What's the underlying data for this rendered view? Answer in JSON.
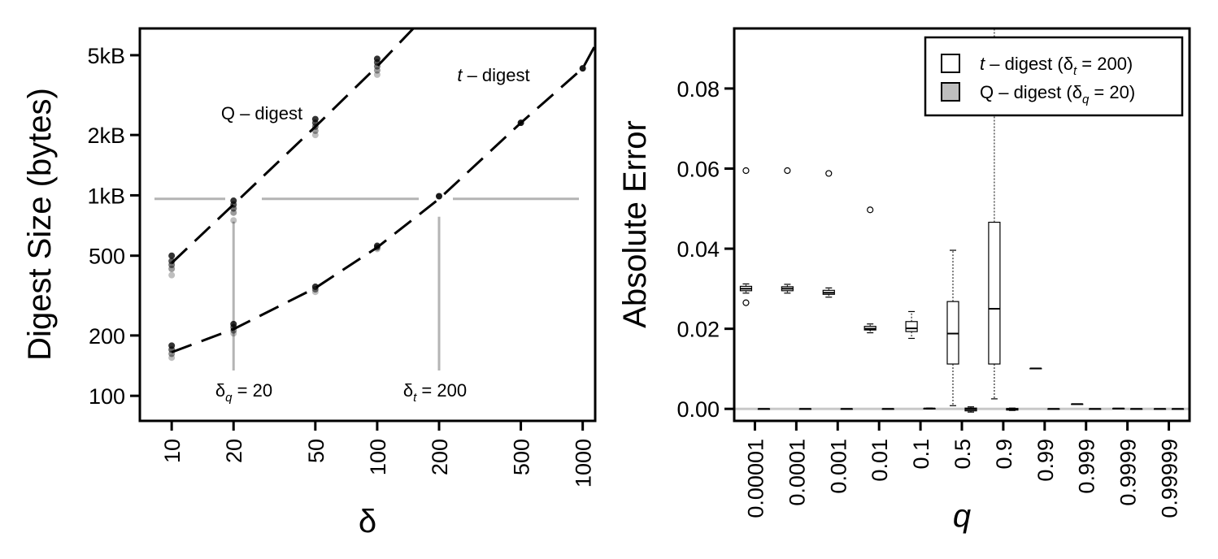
{
  "chart_data": [
    {
      "type": "scatter",
      "title": "",
      "xlabel": "δ",
      "ylabel": "Digest Size (bytes)",
      "x_scale": "log",
      "y_scale": "log",
      "xlim": [
        7,
        1150
      ],
      "ylim": [
        75,
        6800
      ],
      "x_ticks": [
        {
          "value": 10,
          "label": "10"
        },
        {
          "value": 20,
          "label": "20"
        },
        {
          "value": 50,
          "label": "50"
        },
        {
          "value": 100,
          "label": "100"
        },
        {
          "value": 200,
          "label": "200"
        },
        {
          "value": 500,
          "label": "500"
        },
        {
          "value": 1000,
          "label": "1000"
        }
      ],
      "y_ticks": [
        {
          "value": 100,
          "label": "100"
        },
        {
          "value": 200,
          "label": "200"
        },
        {
          "value": 500,
          "label": "500"
        },
        {
          "value": 1000,
          "label": "1kB"
        },
        {
          "value": 2000,
          "label": "2kB"
        },
        {
          "value": 5000,
          "label": "5kB"
        }
      ],
      "reference_lines": {
        "horizontal_y": 960,
        "vertical_x": [
          20,
          200
        ]
      },
      "annotations": {
        "qdigest_label": "Q – digest",
        "tdigest_prefix": "t",
        "tdigest_suffix": " – digest",
        "delta_q_base": "δ",
        "delta_q_sub": "q",
        "delta_q_value": " = 20",
        "delta_t_base": "δ",
        "delta_t_sub": "t",
        "delta_t_value": " = 200"
      },
      "series": [
        {
          "name": "Q – digest",
          "points": [
            {
              "x": 10,
              "y": [
                400,
                430,
                450,
                470,
                500
              ]
            },
            {
              "x": 20,
              "y": [
                750,
                820,
                860,
                900,
                940
              ]
            },
            {
              "x": 50,
              "y": [
                2000,
                2100,
                2200,
                2300,
                2400
              ]
            },
            {
              "x": 100,
              "y": [
                4000,
                4200,
                4400,
                4600,
                4800
              ]
            }
          ],
          "fit": [
            [
              10,
              460
            ],
            [
              20,
              900
            ],
            [
              50,
              2200
            ],
            [
              100,
              4400
            ],
            [
              150,
              6800
            ]
          ]
        },
        {
          "name": "t – digest",
          "points": [
            {
              "x": 10,
              "y": [
                155,
                162,
                170,
                178
              ]
            },
            {
              "x": 20,
              "y": [
                205,
                212,
                220,
                228
              ]
            },
            {
              "x": 50,
              "y": [
                330,
                340,
                350
              ]
            },
            {
              "x": 100,
              "y": [
                540,
                550,
                560
              ]
            },
            {
              "x": 200,
              "y": [
                990
              ]
            },
            {
              "x": 500,
              "y": [
                2300
              ]
            },
            {
              "x": 1000,
              "y": [
                4300
              ]
            }
          ],
          "fit": [
            [
              10,
              165
            ],
            [
              20,
              215
            ],
            [
              50,
              345
            ],
            [
              100,
              550
            ],
            [
              200,
              960
            ],
            [
              500,
              2300
            ],
            [
              1000,
              4300
            ],
            [
              1150,
              5600
            ]
          ]
        }
      ]
    },
    {
      "type": "box",
      "title": "",
      "xlabel": "q",
      "ylabel": "Absolute Error",
      "ylim": [
        -0.003,
        0.095
      ],
      "y_ticks": [
        {
          "value": 0.0,
          "label": "0.00"
        },
        {
          "value": 0.02,
          "label": "0.02"
        },
        {
          "value": 0.04,
          "label": "0.04"
        },
        {
          "value": 0.06,
          "label": "0.06"
        },
        {
          "value": 0.08,
          "label": "0.08"
        }
      ],
      "categories": [
        "0.00001",
        "0.0001",
        "0.001",
        "0.01",
        "0.1",
        "0.5",
        "0.9",
        "0.99",
        "0.999",
        "0.9999",
        "0.99999"
      ],
      "legend": {
        "position": "top-right",
        "entries": [
          {
            "prefix": "t",
            "label": " – digest  (δ",
            "sub": "t",
            "suffix": " = 200)",
            "fill": "#ffffff"
          },
          {
            "prefix": "",
            "label": "Q – digest (δ",
            "sub": "q",
            "suffix": " = 20)",
            "fill": "#bebebe"
          }
        ]
      },
      "series": [
        {
          "name": "t – digest  (δt = 200)",
          "fill": "#ffffff",
          "boxes": [
            {
              "min": 0.0289,
              "q1": 0.0295,
              "median": 0.03,
              "q3": 0.0306,
              "max": 0.0312,
              "outliers": [
                0.0595,
                0.0265
              ]
            },
            {
              "min": 0.0289,
              "q1": 0.0295,
              "median": 0.03,
              "q3": 0.0305,
              "max": 0.0311,
              "outliers": [
                0.0595
              ]
            },
            {
              "min": 0.0279,
              "q1": 0.0286,
              "median": 0.029,
              "q3": 0.0296,
              "max": 0.0302,
              "outliers": [
                0.0588
              ]
            },
            {
              "min": 0.019,
              "q1": 0.0197,
              "median": 0.02,
              "q3": 0.0206,
              "max": 0.0212,
              "outliers": [
                0.0497
              ]
            },
            {
              "min": 0.0176,
              "q1": 0.0193,
              "median": 0.0201,
              "q3": 0.0218,
              "max": 0.0243,
              "outliers": []
            },
            {
              "min": 0.0008,
              "q1": 0.0112,
              "median": 0.0188,
              "q3": 0.0268,
              "max": 0.0396,
              "outliers": []
            },
            {
              "min": 0.0025,
              "q1": 0.0112,
              "median": 0.025,
              "q3": 0.0466,
              "max": 0.095,
              "outliers": []
            },
            {
              "min": 0.0101,
              "q1": 0.0101,
              "median": 0.0101,
              "q3": 0.0101,
              "max": 0.0101,
              "outliers": []
            },
            {
              "min": 0.0012,
              "q1": 0.0012,
              "median": 0.0012,
              "q3": 0.0012,
              "max": 0.0012,
              "outliers": []
            },
            {
              "min": 0.0001,
              "q1": 0.0001,
              "median": 0.0001,
              "q3": 0.0001,
              "max": 0.0001,
              "outliers": []
            },
            {
              "min": 0.0,
              "q1": 0.0,
              "median": 0.0,
              "q3": 0.0,
              "max": 0.0,
              "outliers": []
            }
          ]
        },
        {
          "name": "Q – digest (δq = 20)",
          "fill": "#bebebe",
          "boxes": [
            {
              "min": 0.0,
              "q1": 0.0,
              "median": 0.0,
              "q3": 0.0,
              "max": 0.0,
              "outliers": []
            },
            {
              "min": 0.0,
              "q1": 0.0,
              "median": 0.0,
              "q3": 0.0,
              "max": 0.0,
              "outliers": []
            },
            {
              "min": 0.0,
              "q1": 0.0,
              "median": 0.0,
              "q3": 0.0,
              "max": 0.0,
              "outliers": []
            },
            {
              "min": 0.0,
              "q1": 0.0,
              "median": 0.0,
              "q3": 0.0,
              "max": 0.0,
              "outliers": []
            },
            {
              "min": 0.0,
              "q1": 0.0,
              "median": 0.0001,
              "q3": 0.0001,
              "max": 0.0002,
              "outliers": []
            },
            {
              "min": -0.0008,
              "q1": -0.0005,
              "median": -0.0001,
              "q3": 0.0002,
              "max": 0.0005,
              "outliers": []
            },
            {
              "min": -0.0004,
              "q1": -0.0003,
              "median": -0.0001,
              "q3": 0.0001,
              "max": 0.0002,
              "outliers": []
            },
            {
              "min": 0.0,
              "q1": 0.0,
              "median": 0.0,
              "q3": 0.0,
              "max": 0.0,
              "outliers": []
            },
            {
              "min": 0.0,
              "q1": 0.0,
              "median": 0.0,
              "q3": 0.0,
              "max": 0.0,
              "outliers": []
            },
            {
              "min": 0.0,
              "q1": 0.0,
              "median": 0.0,
              "q3": 0.0,
              "max": 0.0,
              "outliers": []
            },
            {
              "min": 0.0,
              "q1": 0.0,
              "median": 0.0,
              "q3": 0.0,
              "max": 0.0,
              "outliers": []
            }
          ]
        }
      ],
      "reference_line_y": 0.0
    }
  ]
}
